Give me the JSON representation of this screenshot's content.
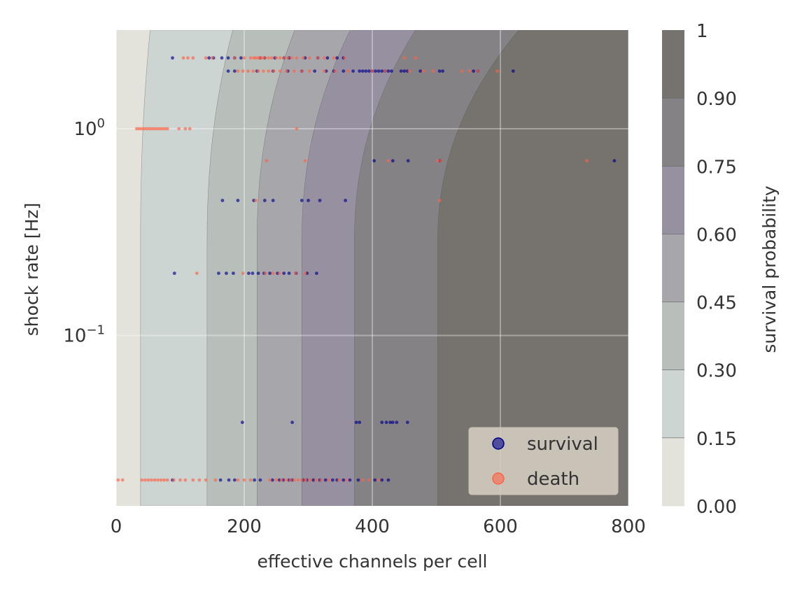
{
  "chart_data": {
    "type": "scatter",
    "xlabel": "effective channels per cell",
    "ylabel": "shock rate [Hz]",
    "xlim": [
      0,
      800
    ],
    "ylim": [
      0.015,
      3.0
    ],
    "yscale": "log",
    "grid": true,
    "x_ticks": [
      0,
      200,
      400,
      600,
      800
    ],
    "x_tick_labels": [
      "0",
      "200",
      "400",
      "600",
      "800"
    ],
    "y_ticks": [
      {
        "value": 1.0,
        "base": "10",
        "exp": "0"
      },
      {
        "value": 0.1,
        "base": "10",
        "exp": "−1"
      }
    ],
    "legend": {
      "position": "lower-right",
      "entries": [
        {
          "label": "survival",
          "color": "#00008b"
        },
        {
          "label": "death",
          "color": "#ff6347"
        }
      ]
    },
    "colorbar": {
      "label": "survival probability",
      "levels": [
        0.0,
        0.15,
        0.3,
        0.45,
        0.6,
        0.75,
        0.9,
        1.0
      ],
      "tick_labels": [
        "0.00",
        "0.15",
        "0.30",
        "0.45",
        "0.60",
        "0.75",
        "0.90",
        "1"
      ],
      "colors": [
        "#e3e3dc",
        "#ccd5d1",
        "#b8bfbb",
        "#a7a7ab",
        "#9690a0",
        "#858286",
        "#76726d"
      ]
    },
    "contour": {
      "base_x_at_high_rate": [
        0,
        38,
        142,
        220,
        290,
        372,
        502
      ],
      "description_levels": [
        "0.00",
        "0.15",
        "0.30",
        "0.45",
        "0.60",
        "0.75",
        "0.90"
      ]
    },
    "series": [
      {
        "name": "survival",
        "color": "#00008b",
        "groups": [
          {
            "y": 2.2,
            "x": [
              88,
              145,
              152,
              165,
              175,
              185,
              195,
              225,
              232,
              248,
              262,
              270,
              295,
              315,
              330,
              345,
              355
            ]
          },
          {
            "y": 1.9,
            "x": [
              175,
              185,
              220,
              245,
              268,
              290,
              310,
              328,
              340,
              355,
              370,
              380,
              385,
              390,
              395,
              400,
              405,
              410,
              415,
              420,
              425,
              430,
              445,
              450,
              455,
              475,
              505,
              510,
              558,
              565,
              620
            ]
          },
          {
            "y": 0.7,
            "x": [
              403,
              432,
              456,
              506,
              778
            ]
          },
          {
            "y": 0.45,
            "x": [
              166,
              190,
              215,
              232,
              245,
              290,
              300,
              318,
              358
            ]
          },
          {
            "y": 0.2,
            "x": [
              91,
              160,
              172,
              183,
              207,
              213,
              222,
              231,
              240,
              252,
              262,
              270,
              281,
              298,
              313
            ]
          },
          {
            "y": 0.038,
            "x": [
              197,
              275,
              375,
              380,
              415,
              422,
              428,
              432,
              438,
              455
            ]
          },
          {
            "y": 0.02,
            "x": [
              88,
              163,
              176,
              185,
              216,
              225,
              244,
              255,
              261,
              270,
              275,
              292,
              298,
              308,
              318,
              327,
              338,
              345,
              355,
              365,
              378,
              404,
              415,
              425
            ]
          }
        ]
      },
      {
        "name": "death",
        "color": "#ff6347",
        "groups": [
          {
            "y": 2.2,
            "x": [
              105,
              112,
              120,
              140,
              150,
              185,
              200,
              210,
              215,
              218,
              222,
              225,
              228,
              232,
              238,
              243,
              250,
              256,
              262,
              268,
              274,
              282,
              292,
              302,
              315,
              325,
              340,
              357,
              450,
              468
            ]
          },
          {
            "y": 1.9,
            "x": [
              190,
              198,
              206,
              214,
              222,
              230,
              238,
              246,
              256,
              266,
              278,
              290,
              302,
              325,
              342,
              362,
              400,
              420,
              458,
              480,
              495,
              540,
              552,
              565,
              595
            ]
          },
          {
            "y": 1.0,
            "x": [
              32,
              36,
              40,
              44,
              48,
              52,
              56,
              60,
              64,
              68,
              72,
              76,
              80,
              98,
              108,
              115,
              282
            ]
          },
          {
            "y": 0.7,
            "x": [
              235,
              295,
              425,
              502,
              507,
              735
            ]
          },
          {
            "y": 0.45,
            "x": [
              218,
              505
            ]
          },
          {
            "y": 0.2,
            "x": [
              126,
              198,
              233,
              245,
              255,
              280,
              295
            ]
          },
          {
            "y": 0.02,
            "x": [
              3,
              10,
              40,
              45,
              50,
              55,
              60,
              65,
              70,
              75,
              80,
              90,
              100,
              108,
              120,
              130,
              140,
              155,
              190,
              200,
              210,
              240,
              250,
              258,
              265,
              272,
              278,
              284,
              290,
              296,
              302,
              312,
              320,
              332,
              348,
              360,
              385,
              395,
              410
            ]
          }
        ]
      }
    ]
  }
}
